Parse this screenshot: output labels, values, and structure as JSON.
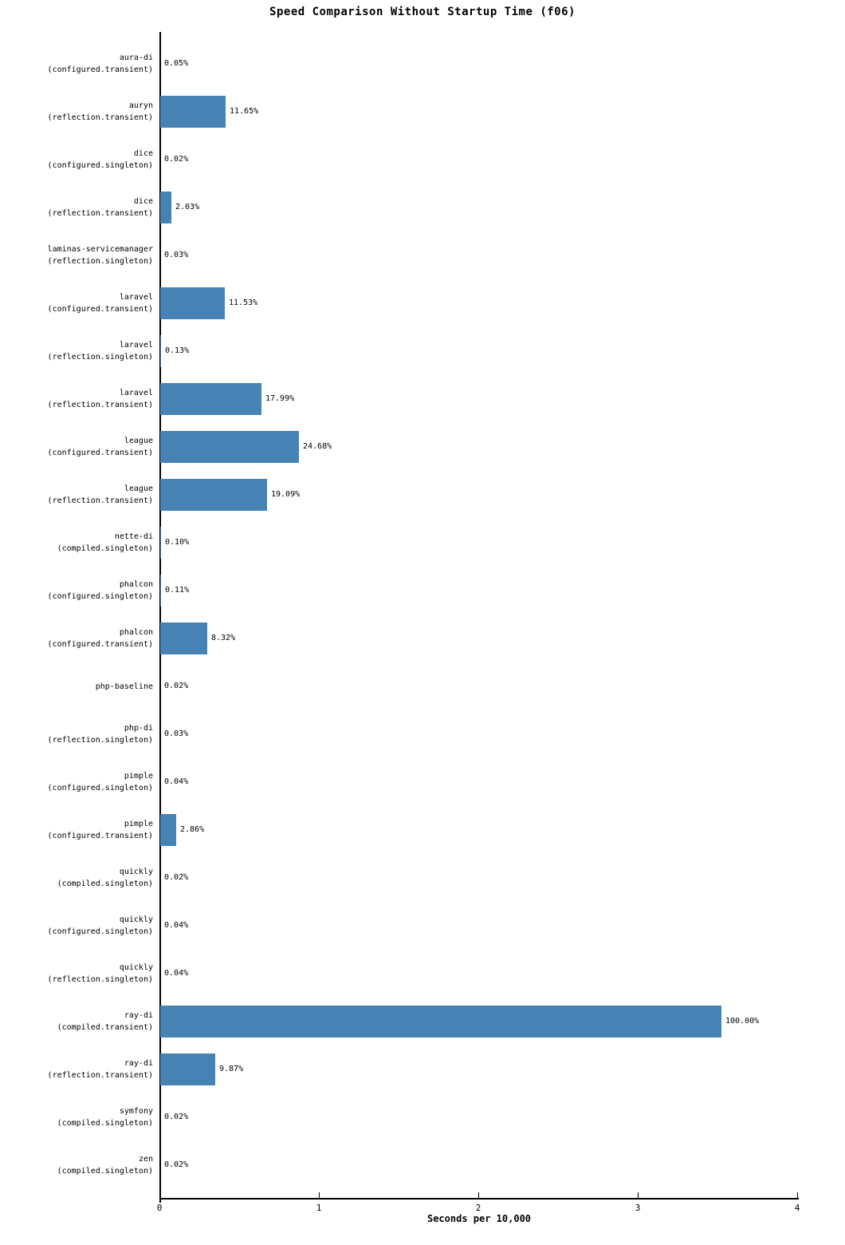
{
  "chart_data": {
    "type": "bar",
    "orientation": "horizontal",
    "title": "Speed Comparison Without Startup Time (f06)",
    "xlabel": "Seconds per 10,000",
    "xlim": [
      0,
      4
    ],
    "xticks": [
      "0",
      "1",
      "2",
      "3",
      "4"
    ],
    "grid": "off",
    "legend": "none",
    "bar_color": "#4682B4",
    "max_bar_seconds": 3.52,
    "categories": [
      {
        "label_lines": [
          "aura-di",
          "(configured.transient)"
        ],
        "pct": 0.05,
        "pct_label": "0.05%",
        "seconds": 0.002
      },
      {
        "label_lines": [
          "auryn",
          "(reflection.transient)"
        ],
        "pct": 11.65,
        "pct_label": "11.65%",
        "seconds": 0.41
      },
      {
        "label_lines": [
          "dice",
          "(configured.singleton)"
        ],
        "pct": 0.02,
        "pct_label": "0.02%",
        "seconds": 0.001
      },
      {
        "label_lines": [
          "dice",
          "(reflection.transient)"
        ],
        "pct": 2.03,
        "pct_label": "2.03%",
        "seconds": 0.071
      },
      {
        "label_lines": [
          "laminas-servicemanager",
          "(reflection.singleton)"
        ],
        "pct": 0.03,
        "pct_label": "0.03%",
        "seconds": 0.001
      },
      {
        "label_lines": [
          "laravel",
          "(configured.transient)"
        ],
        "pct": 11.53,
        "pct_label": "11.53%",
        "seconds": 0.406
      },
      {
        "label_lines": [
          "laravel",
          "(reflection.singleton)"
        ],
        "pct": 0.13,
        "pct_label": "0.13%",
        "seconds": 0.005
      },
      {
        "label_lines": [
          "laravel",
          "(reflection.transient)"
        ],
        "pct": 17.99,
        "pct_label": "17.99%",
        "seconds": 0.633
      },
      {
        "label_lines": [
          "league",
          "(configured.transient)"
        ],
        "pct": 24.68,
        "pct_label": "24.68%",
        "seconds": 0.869
      },
      {
        "label_lines": [
          "league",
          "(reflection.transient)"
        ],
        "pct": 19.09,
        "pct_label": "19.09%",
        "seconds": 0.672
      },
      {
        "label_lines": [
          "nette-di",
          "(compiled.singleton)"
        ],
        "pct": 0.1,
        "pct_label": "0.10%",
        "seconds": 0.004
      },
      {
        "label_lines": [
          "phalcon",
          "(configured.singleton)"
        ],
        "pct": 0.11,
        "pct_label": "0.11%",
        "seconds": 0.004
      },
      {
        "label_lines": [
          "phalcon",
          "(configured.transient)"
        ],
        "pct": 8.32,
        "pct_label": "8.32%",
        "seconds": 0.293
      },
      {
        "label_lines": [
          "php-baseline"
        ],
        "pct": 0.02,
        "pct_label": "0.02%",
        "seconds": 0.001
      },
      {
        "label_lines": [
          "php-di",
          "(reflection.singleton)"
        ],
        "pct": 0.03,
        "pct_label": "0.03%",
        "seconds": 0.001
      },
      {
        "label_lines": [
          "pimple",
          "(configured.singleton)"
        ],
        "pct": 0.04,
        "pct_label": "0.04%",
        "seconds": 0.001
      },
      {
        "label_lines": [
          "pimple",
          "(configured.transient)"
        ],
        "pct": 2.86,
        "pct_label": "2.86%",
        "seconds": 0.101
      },
      {
        "label_lines": [
          "quickly",
          "(compiled.singleton)"
        ],
        "pct": 0.02,
        "pct_label": "0.02%",
        "seconds": 0.001
      },
      {
        "label_lines": [
          "quickly",
          "(configured.singleton)"
        ],
        "pct": 0.04,
        "pct_label": "0.04%",
        "seconds": 0.001
      },
      {
        "label_lines": [
          "quickly",
          "(reflection.singleton)"
        ],
        "pct": 0.04,
        "pct_label": "0.04%",
        "seconds": 0.001
      },
      {
        "label_lines": [
          "ray-di",
          "(compiled.transient)"
        ],
        "pct": 100.0,
        "pct_label": "100.00%",
        "seconds": 3.52
      },
      {
        "label_lines": [
          "ray-di",
          "(reflection.transient)"
        ],
        "pct": 9.87,
        "pct_label": "9.87%",
        "seconds": 0.347
      },
      {
        "label_lines": [
          "symfony",
          "(compiled.singleton)"
        ],
        "pct": 0.02,
        "pct_label": "0.02%",
        "seconds": 0.001
      },
      {
        "label_lines": [
          "zen",
          "(compiled.singleton)"
        ],
        "pct": 0.02,
        "pct_label": "0.02%",
        "seconds": 0.001
      }
    ]
  }
}
